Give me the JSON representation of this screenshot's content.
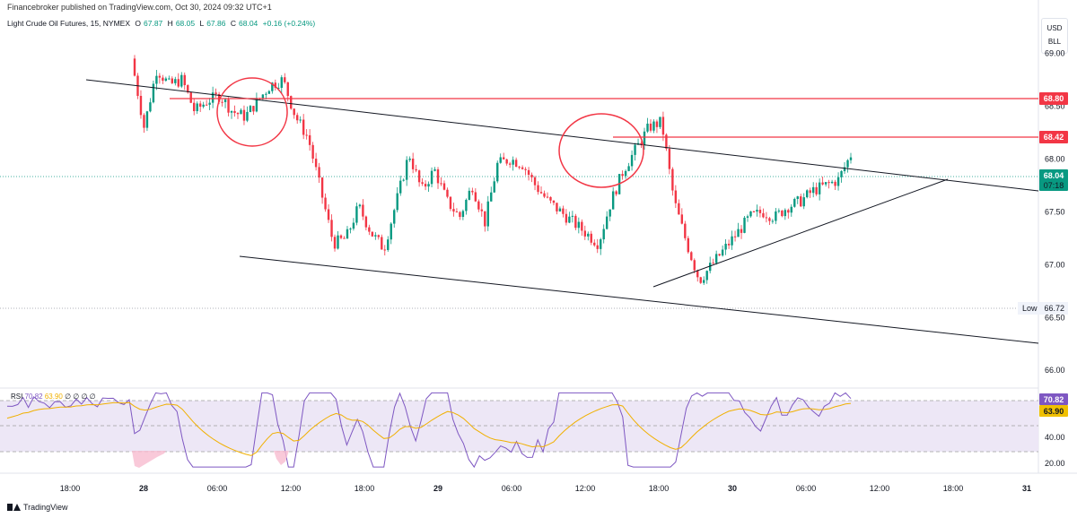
{
  "publisher_line": "Financebroker published on TradingView.com, Oct 30, 2024 09:32 UTC+1",
  "legend": {
    "symbol": "Light Crude Oil Futures, 15, NYMEX",
    "o_label": "O",
    "o_value": "67.87",
    "h_label": "H",
    "h_value": "68.05",
    "l_label": "L",
    "l_value": "67.86",
    "c_label": "C",
    "c_value": "68.04",
    "change": "+0.16 (+0.24%)"
  },
  "currency": {
    "line1": "USD",
    "line2": "BLL"
  },
  "colors": {
    "up": "#089981",
    "down": "#f23645",
    "line": "#131722",
    "rsi": "#7e57c2",
    "rsi_ma": "#f0b000",
    "rsi_band": "#ede7f6",
    "price_tag": "#089981",
    "level_tag": "#f23645"
  },
  "price_axis": [
    "69.00",
    "68.50",
    "68.00",
    "67.50",
    "67.00",
    "66.50",
    "66.00"
  ],
  "price_tags": {
    "level_high": "68.80",
    "level_mid": "68.42",
    "current_price": "68.04",
    "countdown": "07:18",
    "low_label": "Low",
    "low_value": "66.72"
  },
  "time_axis": [
    "18:00",
    "28",
    "06:00",
    "12:00",
    "18:00",
    "29",
    "06:00",
    "12:00",
    "18:00",
    "30",
    "06:00",
    "12:00",
    "18:00",
    "31"
  ],
  "rsi": {
    "label": "RSI",
    "value": "70.82",
    "ma_value": "63.90",
    "extras": "∅ ∅ ∅ ∅",
    "axis": [
      "40.00",
      "20.00"
    ],
    "tag_value": "70.82",
    "tag_ma": "63.90"
  },
  "footer": {
    "brand": "TradingView"
  },
  "chart_data": {
    "type": "candlestick",
    "title": "Light Crude Oil Futures, 15, NYMEX",
    "ylim": [
      65.9,
      69.25
    ],
    "x_ticks": [
      "18:00",
      "28",
      "06:00",
      "12:00",
      "18:00",
      "29",
      "06:00",
      "12:00",
      "18:00",
      "30",
      "06:00",
      "12:00",
      "18:00",
      "31"
    ],
    "horizontal_levels": [
      68.8,
      68.42
    ],
    "low": 66.72,
    "last": 68.04,
    "path": [
      68.95,
      68.3,
      68.85,
      68.7,
      68.75,
      68.45,
      68.55,
      68.6,
      68.45,
      68.4,
      68.55,
      68.7,
      68.75,
      68.4,
      68.2,
      67.7,
      67.2,
      67.25,
      67.55,
      67.3,
      67.15,
      67.6,
      68.05,
      67.7,
      67.9,
      67.6,
      67.45,
      67.75,
      67.4,
      67.95,
      68.0,
      67.95,
      67.75,
      67.6,
      67.5,
      67.4,
      67.3,
      67.2,
      67.6,
      67.9,
      68.1,
      68.3,
      68.35,
      67.6,
      67.2,
      66.85,
      67.0,
      67.15,
      67.3,
      67.45,
      67.5,
      67.45,
      67.55,
      67.6,
      67.7,
      67.75,
      67.8,
      68.04
    ]
  }
}
